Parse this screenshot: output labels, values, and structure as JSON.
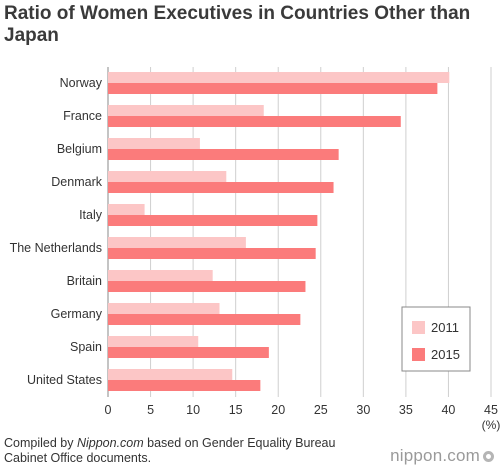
{
  "chart_data": {
    "type": "bar",
    "orientation": "horizontal",
    "title": "Ratio of Women Executives in Countries Other than Japan",
    "categories": [
      "Norway",
      "France",
      "Belgium",
      "Denmark",
      "Italy",
      "The Netherlands",
      "Britain",
      "Germany",
      "Spain",
      "United States"
    ],
    "series": [
      {
        "name": "2011",
        "color": "#fcc6c6",
        "values": [
          40.1,
          18.3,
          10.8,
          13.9,
          4.3,
          16.2,
          12.3,
          13.1,
          10.6,
          14.6
        ]
      },
      {
        "name": "2015",
        "color": "#fb7b7b",
        "values": [
          38.7,
          34.4,
          27.1,
          26.5,
          24.6,
          24.4,
          23.2,
          22.6,
          18.9,
          17.9
        ]
      }
    ],
    "xlim": [
      0,
      45
    ],
    "xticks": [
      0,
      5,
      10,
      15,
      20,
      25,
      30,
      35,
      40,
      45
    ],
    "xunit": "(%)",
    "grid": true,
    "legend_position": "bottom-right"
  },
  "footer": {
    "prefix": "Compiled by ",
    "source_name": "Nippon.com",
    "suffix": " based on Gender Equality Bureau Cabinet Office documents."
  },
  "brand": "nippon.com"
}
